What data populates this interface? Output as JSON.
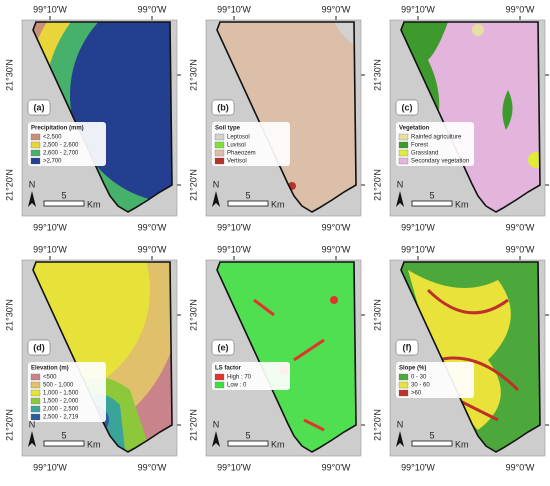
{
  "coords": {
    "lon": [
      "99°10'W",
      "99°0'W"
    ],
    "lat": [
      "21°30'N",
      "21°20'N"
    ]
  },
  "scale": {
    "distance": "5",
    "unit": "Km"
  },
  "north": "N",
  "panels": [
    {
      "letter": "(a)",
      "legend_title": "Precipitation (mm)",
      "items": [
        {
          "label": "<2,500",
          "color": "#c98f7a"
        },
        {
          "label": "2,500 - 2,600",
          "color": "#e8d53a"
        },
        {
          "label": "2,600 - 2,700",
          "color": "#45b16a"
        },
        {
          "label": ">2,700",
          "color": "#243f8f"
        }
      ]
    },
    {
      "letter": "(b)",
      "legend_title": "Soil type",
      "items": [
        {
          "label": "Leptosol",
          "color": "#d2d2d2"
        },
        {
          "label": "Luvisol",
          "color": "#7ee03b"
        },
        {
          "label": "Phaeozem",
          "color": "#dbbfa8"
        },
        {
          "label": "Vertisol",
          "color": "#b8322a"
        }
      ]
    },
    {
      "letter": "(c)",
      "legend_title": "Vegetation",
      "items": [
        {
          "label": "Rainfed agriculture",
          "color": "#e6e0a0"
        },
        {
          "label": "Forest",
          "color": "#3f9a2e"
        },
        {
          "label": "Grassland",
          "color": "#e2ea3a"
        },
        {
          "label": "Secondary vegetation",
          "color": "#e3b5dc"
        }
      ]
    },
    {
      "letter": "(d)",
      "legend_title": "Elevation (m)",
      "items": [
        {
          "label": "<500",
          "color": "#c9838a"
        },
        {
          "label": "500 - 1,000",
          "color": "#e0c06a"
        },
        {
          "label": "1,000 - 1,500",
          "color": "#e6e23a"
        },
        {
          "label": "1,500 - 2,000",
          "color": "#8cc83a"
        },
        {
          "label": "2,000 - 2,500",
          "color": "#3aa39a"
        },
        {
          "label": "2,500 - 2,719",
          "color": "#2b5d9a"
        }
      ]
    },
    {
      "letter": "(e)",
      "legend_title": "LS factor",
      "items": [
        {
          "label": "High : 70",
          "color": "#e0352a"
        },
        {
          "label": "Low : 0",
          "color": "#3ae23a"
        }
      ]
    },
    {
      "letter": "(f)",
      "legend_title": "Slope (%)",
      "items": [
        {
          "label": "0 - 30",
          "color": "#4ca83a"
        },
        {
          "label": "30 - 60",
          "color": "#e8e23a"
        },
        {
          "label": ">60",
          "color": "#c0302a"
        }
      ]
    }
  ]
}
